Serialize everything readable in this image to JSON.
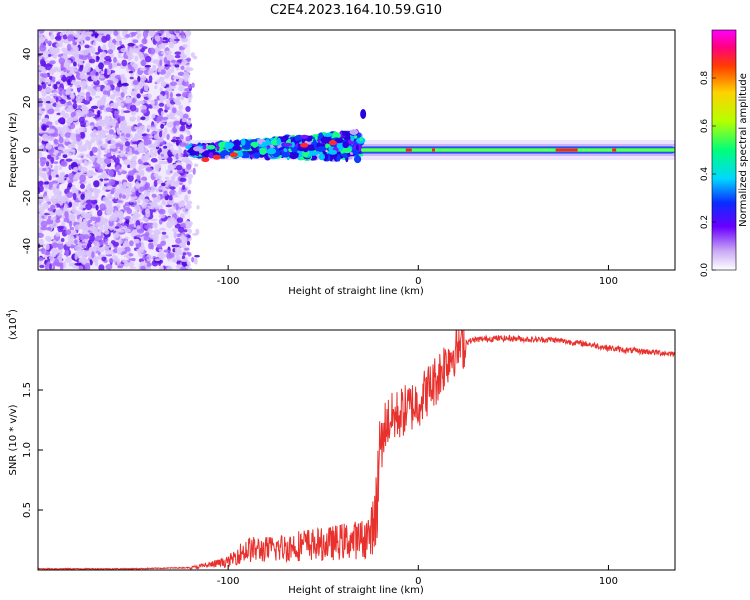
{
  "title": "C2E4.2023.164.10.59.G10",
  "colors": {
    "snr_line": "#e8302c",
    "spec_low": "#a15cff",
    "spec_mid": "#3c12e0",
    "spec_high": "#ff2020"
  },
  "chart_data": [
    {
      "type": "heatmap",
      "xlabel": "Height of straight line (km)",
      "ylabel": "Frequency (Hz)",
      "xlim": [
        -200,
        135
      ],
      "ylim": [
        -50,
        50
      ],
      "x_ticks": [
        -100,
        0,
        100
      ],
      "y_ticks": [
        -40,
        -20,
        0,
        20,
        40
      ],
      "grid": false,
      "colorbar": {
        "label": "Normalized spectral amplitude",
        "range": [
          0,
          1
        ],
        "ticks": [
          0.0,
          0.2,
          0.4,
          0.6,
          0.8
        ],
        "tick_labels": [
          "0.0",
          "0.2",
          "0.4",
          "0.6",
          "0.8"
        ]
      },
      "features": [
        {
          "x_start": -200,
          "x_end": -120,
          "description": "scattered noise across all frequencies"
        },
        {
          "x_start": -120,
          "x_end": -30,
          "freq_center": 0,
          "description": "broadened signal trace"
        },
        {
          "x_start": -30,
          "x_end": 135,
          "freq_center": 0,
          "description": "narrow carrier line near 0 Hz"
        }
      ]
    },
    {
      "type": "line",
      "xlabel": "Height of straight line (km)",
      "ylabel": "SNR (10 * v/v)",
      "y_multiplier_label": "(x10",
      "y_multiplier_exp": "4",
      "xlim": [
        -200,
        135
      ],
      "ylim": [
        0,
        2.0
      ],
      "x_ticks": [
        -100,
        0,
        100
      ],
      "y_ticks": [
        0.5,
        1.0,
        1.5
      ],
      "y_tick_labels": [
        "0.5",
        "1.0",
        "1.5"
      ],
      "grid": false,
      "series": [
        {
          "x": [
            -200,
            -150,
            -120,
            -110,
            -100,
            -95,
            -90,
            -80,
            -70,
            -60,
            -50,
            -40,
            -30,
            -25,
            -22,
            -20,
            -19,
            -18,
            -15,
            -10,
            -5,
            0,
            5,
            10,
            15,
            20,
            25,
            30,
            40,
            50,
            60,
            70,
            80,
            90,
            100,
            110,
            120,
            135
          ],
          "y": [
            0.01,
            0.01,
            0.02,
            0.05,
            0.08,
            0.15,
            0.2,
            0.2,
            0.22,
            0.25,
            0.25,
            0.28,
            0.3,
            0.35,
            0.6,
            1.15,
            1.0,
            1.2,
            1.25,
            1.3,
            1.35,
            1.4,
            1.5,
            1.6,
            1.75,
            1.85,
            1.9,
            1.92,
            1.93,
            1.93,
            1.92,
            1.92,
            1.9,
            1.88,
            1.85,
            1.83,
            1.82,
            1.8
          ]
        }
      ]
    }
  ]
}
